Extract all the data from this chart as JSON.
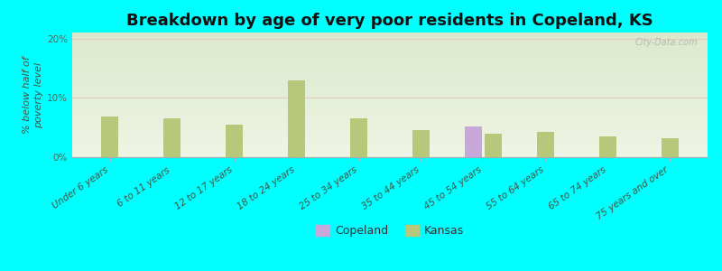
{
  "title": "Breakdown by age of very poor residents in Copeland, KS",
  "ylabel": "% below half of\npoverty level",
  "background_color": "#00FFFF",
  "plot_bg_top": "#dce8cc",
  "plot_bg_bottom": "#eef5e4",
  "categories": [
    "Under 6 years",
    "6 to 11 years",
    "12 to 17 years",
    "18 to 24 years",
    "25 to 34 years",
    "35 to 44 years",
    "45 to 54 years",
    "55 to 64 years",
    "65 to 74 years",
    "75 years and over"
  ],
  "kansas_values": [
    6.8,
    6.5,
    5.5,
    13.0,
    6.5,
    4.5,
    4.0,
    4.2,
    3.5,
    3.2
  ],
  "copeland_values": [
    0,
    0,
    0,
    0,
    0,
    0,
    5.2,
    0,
    0,
    0
  ],
  "kansas_color": "#b8c87a",
  "copeland_color": "#c8a8d8",
  "ylim": [
    0,
    21
  ],
  "yticks": [
    0,
    10,
    20
  ],
  "ytick_labels": [
    "0%",
    "10%",
    "20%"
  ],
  "watermark": "City-Data.com",
  "title_fontsize": 13,
  "axis_fontsize": 8,
  "tick_fontsize": 7.5,
  "legend_fontsize": 9
}
